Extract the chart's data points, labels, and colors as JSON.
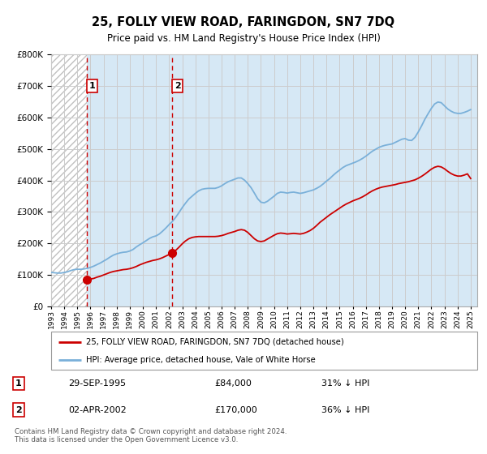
{
  "title": "25, FOLLY VIEW ROAD, FARINGDON, SN7 7DQ",
  "subtitle": "Price paid vs. HM Land Registry's House Price Index (HPI)",
  "legend_line1": "25, FOLLY VIEW ROAD, FARINGDON, SN7 7DQ (detached house)",
  "legend_line2": "HPI: Average price, detached house, Vale of White Horse",
  "footer": "Contains HM Land Registry data © Crown copyright and database right 2024.\nThis data is licensed under the Open Government Licence v3.0.",
  "purchases": [
    {
      "label": "1",
      "date_num": 1995.75,
      "price": 84000,
      "date_str": "29-SEP-1995",
      "pct": "31% ↓ HPI"
    },
    {
      "label": "2",
      "date_num": 2002.25,
      "price": 170000,
      "date_str": "02-APR-2002",
      "pct": "36% ↓ HPI"
    }
  ],
  "hpi_color": "#7ab0d9",
  "price_color": "#cc0000",
  "vline_color": "#cc0000",
  "ylim": [
    0,
    800000
  ],
  "xlim_start": 1993.0,
  "xlim_end": 2025.5,
  "hpi_data": {
    "years": [
      1993.0,
      1993.25,
      1993.5,
      1993.75,
      1994.0,
      1994.25,
      1994.5,
      1994.75,
      1995.0,
      1995.25,
      1995.5,
      1995.75,
      1996.0,
      1996.25,
      1996.5,
      1996.75,
      1997.0,
      1997.25,
      1997.5,
      1997.75,
      1998.0,
      1998.25,
      1998.5,
      1998.75,
      1999.0,
      1999.25,
      1999.5,
      1999.75,
      2000.0,
      2000.25,
      2000.5,
      2000.75,
      2001.0,
      2001.25,
      2001.5,
      2001.75,
      2002.0,
      2002.25,
      2002.5,
      2002.75,
      2003.0,
      2003.25,
      2003.5,
      2003.75,
      2004.0,
      2004.25,
      2004.5,
      2004.75,
      2005.0,
      2005.25,
      2005.5,
      2005.75,
      2006.0,
      2006.25,
      2006.5,
      2006.75,
      2007.0,
      2007.25,
      2007.5,
      2007.75,
      2008.0,
      2008.25,
      2008.5,
      2008.75,
      2009.0,
      2009.25,
      2009.5,
      2009.75,
      2010.0,
      2010.25,
      2010.5,
      2010.75,
      2011.0,
      2011.25,
      2011.5,
      2011.75,
      2012.0,
      2012.25,
      2012.5,
      2012.75,
      2013.0,
      2013.25,
      2013.5,
      2013.75,
      2014.0,
      2014.25,
      2014.5,
      2014.75,
      2015.0,
      2015.25,
      2015.5,
      2015.75,
      2016.0,
      2016.25,
      2016.5,
      2016.75,
      2017.0,
      2017.25,
      2017.5,
      2017.75,
      2018.0,
      2018.25,
      2018.5,
      2018.75,
      2019.0,
      2019.25,
      2019.5,
      2019.75,
      2020.0,
      2020.25,
      2020.5,
      2020.75,
      2021.0,
      2021.25,
      2021.5,
      2021.75,
      2022.0,
      2022.25,
      2022.5,
      2022.75,
      2023.0,
      2023.25,
      2023.5,
      2023.75,
      2024.0,
      2024.25,
      2024.5,
      2024.75,
      2025.0
    ],
    "values": [
      108000,
      107000,
      106000,
      106000,
      108000,
      110000,
      114000,
      117000,
      118000,
      118000,
      119000,
      121000,
      124000,
      128000,
      133000,
      138000,
      144000,
      150000,
      157000,
      163000,
      167000,
      170000,
      172000,
      173000,
      176000,
      181000,
      189000,
      196000,
      202000,
      209000,
      216000,
      221000,
      224000,
      230000,
      239000,
      249000,
      260000,
      270000,
      283000,
      298000,
      314000,
      328000,
      341000,
      350000,
      359000,
      367000,
      372000,
      374000,
      375000,
      375000,
      375000,
      378000,
      383000,
      390000,
      396000,
      400000,
      404000,
      408000,
      408000,
      401000,
      390000,
      377000,
      360000,
      342000,
      331000,
      329000,
      334000,
      342000,
      350000,
      359000,
      363000,
      362000,
      360000,
      362000,
      363000,
      361000,
      359000,
      361000,
      364000,
      367000,
      370000,
      375000,
      381000,
      389000,
      398000,
      406000,
      416000,
      425000,
      433000,
      441000,
      447000,
      451000,
      455000,
      459000,
      464000,
      470000,
      477000,
      485000,
      493000,
      499000,
      505000,
      509000,
      512000,
      514000,
      516000,
      521000,
      526000,
      531000,
      533000,
      528000,
      527000,
      537000,
      554000,
      573000,
      594000,
      612000,
      629000,
      643000,
      649000,
      647000,
      637000,
      627000,
      620000,
      615000,
      613000,
      613000,
      616000,
      620000,
      625000
    ]
  },
  "price_data": {
    "years": [
      1995.75,
      1996.0,
      1996.25,
      1996.5,
      1996.75,
      1997.0,
      1997.25,
      1997.5,
      1997.75,
      1998.0,
      1998.25,
      1998.5,
      1998.75,
      1999.0,
      1999.25,
      1999.5,
      1999.75,
      2000.0,
      2000.25,
      2000.5,
      2000.75,
      2001.0,
      2001.25,
      2001.5,
      2001.75,
      2002.0,
      2002.25,
      2002.5,
      2002.75,
      2003.0,
      2003.25,
      2003.5,
      2003.75,
      2004.0,
      2004.25,
      2004.5,
      2004.75,
      2005.0,
      2005.25,
      2005.5,
      2005.75,
      2006.0,
      2006.25,
      2006.5,
      2006.75,
      2007.0,
      2007.25,
      2007.5,
      2007.75,
      2008.0,
      2008.25,
      2008.5,
      2008.75,
      2009.0,
      2009.25,
      2009.5,
      2009.75,
      2010.0,
      2010.25,
      2010.5,
      2010.75,
      2011.0,
      2011.25,
      2011.5,
      2011.75,
      2012.0,
      2012.25,
      2012.5,
      2012.75,
      2013.0,
      2013.25,
      2013.5,
      2013.75,
      2014.0,
      2014.25,
      2014.5,
      2014.75,
      2015.0,
      2015.25,
      2015.5,
      2015.75,
      2016.0,
      2016.25,
      2016.5,
      2016.75,
      2017.0,
      2017.25,
      2017.5,
      2017.75,
      2018.0,
      2018.25,
      2018.5,
      2018.75,
      2019.0,
      2019.25,
      2019.5,
      2019.75,
      2020.0,
      2020.25,
      2020.5,
      2020.75,
      2021.0,
      2021.25,
      2021.5,
      2021.75,
      2022.0,
      2022.25,
      2022.5,
      2022.75,
      2023.0,
      2023.25,
      2023.5,
      2023.75,
      2024.0,
      2024.25,
      2024.5,
      2024.75,
      2025.0
    ],
    "values": [
      84000,
      87000,
      89000,
      93000,
      96000,
      100000,
      104000,
      108000,
      111000,
      113000,
      115000,
      117000,
      118000,
      120000,
      123000,
      127000,
      132000,
      136000,
      140000,
      143000,
      146000,
      148000,
      151000,
      155000,
      160000,
      165000,
      170000,
      178000,
      188000,
      199000,
      208000,
      215000,
      219000,
      221000,
      222000,
      222000,
      222000,
      222000,
      222000,
      222000,
      223000,
      225000,
      228000,
      232000,
      235000,
      238000,
      242000,
      244000,
      242000,
      235000,
      225000,
      215000,
      208000,
      206000,
      208000,
      214000,
      220000,
      226000,
      231000,
      233000,
      232000,
      230000,
      231000,
      232000,
      231000,
      230000,
      232000,
      236000,
      241000,
      248000,
      257000,
      267000,
      275000,
      283000,
      291000,
      298000,
      305000,
      312000,
      319000,
      325000,
      330000,
      335000,
      339000,
      343000,
      348000,
      354000,
      361000,
      367000,
      372000,
      376000,
      379000,
      381000,
      383000,
      385000,
      387000,
      390000,
      392000,
      394000,
      396000,
      399000,
      402000,
      407000,
      413000,
      420000,
      428000,
      436000,
      442000,
      445000,
      443000,
      437000,
      429000,
      422000,
      417000,
      414000,
      414000,
      417000,
      421000,
      406000
    ]
  }
}
